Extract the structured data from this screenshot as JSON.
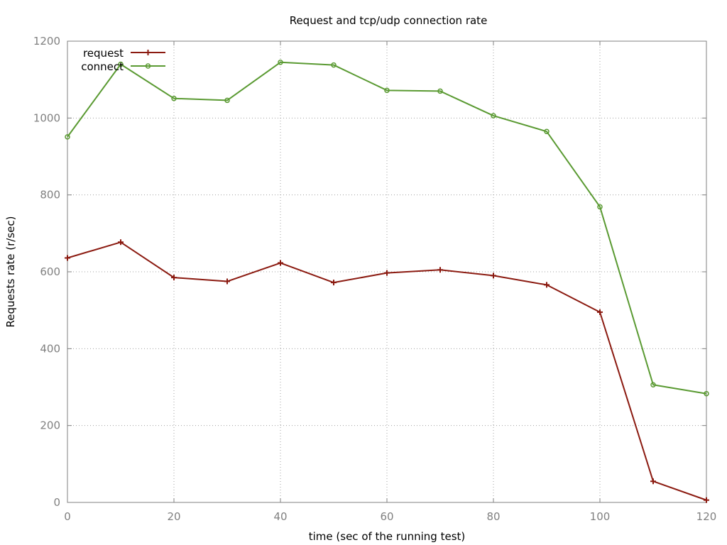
{
  "chart_data": {
    "type": "line",
    "title": "Request and tcp/udp connection rate",
    "xlabel": "time (sec of the running test)",
    "ylabel": "Requests rate (r/sec)",
    "xlim": [
      0,
      120
    ],
    "ylim": [
      0,
      1200
    ],
    "xticks": [
      0,
      20,
      40,
      60,
      80,
      100,
      120
    ],
    "yticks": [
      0,
      200,
      400,
      600,
      800,
      1000,
      1200
    ],
    "grid": true,
    "legend_position": "top-left",
    "x": [
      0,
      10,
      20,
      30,
      40,
      50,
      60,
      70,
      80,
      90,
      100,
      110,
      120
    ],
    "series": [
      {
        "name": "request",
        "color": "#8b1a10",
        "marker": "plus",
        "values": [
          636,
          677,
          585,
          575,
          623,
          572,
          597,
          605,
          590,
          566,
          495,
          55,
          6
        ]
      },
      {
        "name": "connect",
        "color": "#5a9a32",
        "marker": "circle",
        "values": [
          951,
          1140,
          1051,
          1046,
          1145,
          1138,
          1072,
          1070,
          1006,
          965,
          769,
          306,
          283
        ]
      }
    ]
  }
}
